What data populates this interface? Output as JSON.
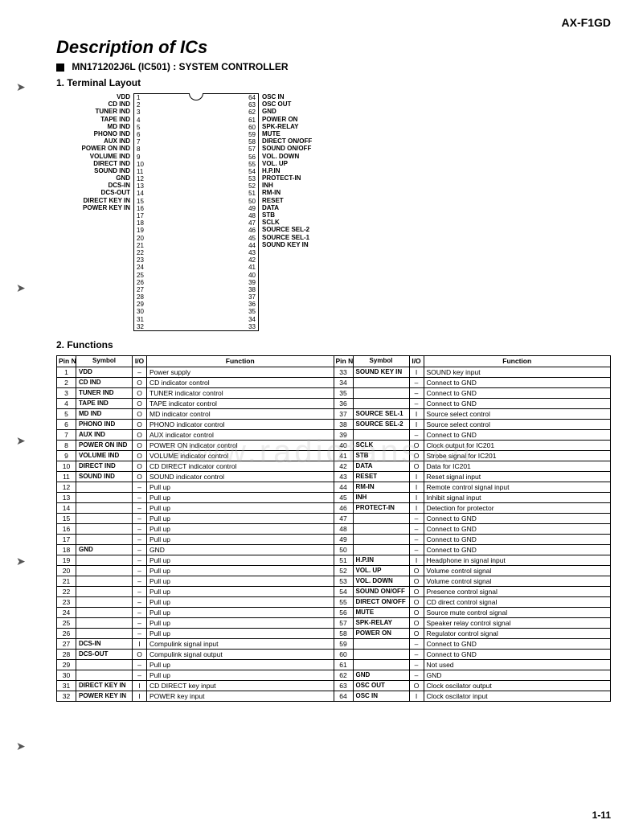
{
  "header": {
    "model": "AX-F1GD",
    "page_num": "1-11"
  },
  "titles": {
    "main": "Description of ICs",
    "ic_line": "MN171202J6L (IC501) : SYSTEM CONTROLLER",
    "layout": "1. Terminal Layout",
    "functions": "2. Functions"
  },
  "watermark": "www.radiofans.cn",
  "colors": {
    "bg": "#ffffff",
    "text": "#000000",
    "border": "#000000"
  },
  "chip": {
    "left": [
      {
        "n": 1,
        "l": "VDD"
      },
      {
        "n": 2,
        "l": "CD IND"
      },
      {
        "n": 3,
        "l": "TUNER IND"
      },
      {
        "n": 4,
        "l": "TAPE IND"
      },
      {
        "n": 5,
        "l": "MD IND"
      },
      {
        "n": 6,
        "l": "PHONO IND"
      },
      {
        "n": 7,
        "l": "AUX IND"
      },
      {
        "n": 8,
        "l": "POWER ON IND"
      },
      {
        "n": 9,
        "l": "VOLUME IND"
      },
      {
        "n": 10,
        "l": "DIRECT IND"
      },
      {
        "n": 11,
        "l": "SOUND IND"
      },
      {
        "n": 12,
        "l": ""
      },
      {
        "n": 13,
        "l": ""
      },
      {
        "n": 14,
        "l": ""
      },
      {
        "n": 15,
        "l": ""
      },
      {
        "n": 16,
        "l": ""
      },
      {
        "n": 17,
        "l": ""
      },
      {
        "n": 18,
        "l": "GND"
      },
      {
        "n": 19,
        "l": ""
      },
      {
        "n": 20,
        "l": ""
      },
      {
        "n": 21,
        "l": ""
      },
      {
        "n": 22,
        "l": ""
      },
      {
        "n": 23,
        "l": ""
      },
      {
        "n": 24,
        "l": ""
      },
      {
        "n": 25,
        "l": ""
      },
      {
        "n": 26,
        "l": ""
      },
      {
        "n": 27,
        "l": "DCS-IN"
      },
      {
        "n": 28,
        "l": "DCS-OUT"
      },
      {
        "n": 29,
        "l": ""
      },
      {
        "n": 30,
        "l": ""
      },
      {
        "n": 31,
        "l": "DIRECT KEY IN"
      },
      {
        "n": 32,
        "l": "POWER KEY IN"
      }
    ],
    "right": [
      {
        "n": 64,
        "l": "OSC IN"
      },
      {
        "n": 63,
        "l": "OSC OUT"
      },
      {
        "n": 62,
        "l": "GND"
      },
      {
        "n": 61,
        "l": ""
      },
      {
        "n": 60,
        "l": ""
      },
      {
        "n": 59,
        "l": ""
      },
      {
        "n": 58,
        "l": "POWER ON"
      },
      {
        "n": 57,
        "l": "SPK-RELAY"
      },
      {
        "n": 56,
        "l": "MUTE"
      },
      {
        "n": 55,
        "l": "DIRECT ON/OFF"
      },
      {
        "n": 54,
        "l": "SOUND ON/OFF"
      },
      {
        "n": 53,
        "l": "VOL. DOWN"
      },
      {
        "n": 52,
        "l": "VOL. UP"
      },
      {
        "n": 51,
        "l": "H.P.IN"
      },
      {
        "n": 50,
        "l": ""
      },
      {
        "n": 49,
        "l": ""
      },
      {
        "n": 48,
        "l": ""
      },
      {
        "n": 47,
        "l": ""
      },
      {
        "n": 46,
        "l": "PROTECT-IN"
      },
      {
        "n": 45,
        "l": "INH"
      },
      {
        "n": 44,
        "l": "RM-IN"
      },
      {
        "n": 43,
        "l": "RESET"
      },
      {
        "n": 42,
        "l": "DATA"
      },
      {
        "n": 41,
        "l": "STB"
      },
      {
        "n": 40,
        "l": "SCLK"
      },
      {
        "n": 39,
        "l": ""
      },
      {
        "n": 38,
        "l": "SOURCE SEL-2"
      },
      {
        "n": 37,
        "l": "SOURCE SEL-1"
      },
      {
        "n": 36,
        "l": ""
      },
      {
        "n": 35,
        "l": ""
      },
      {
        "n": 34,
        "l": ""
      },
      {
        "n": 33,
        "l": "SOUND KEY IN"
      }
    ]
  },
  "func_headers": {
    "pin": "Pin\nNo.",
    "symbol": "Symbol",
    "io": "I/O",
    "function": "Function",
    "pin2": "Pin\nNO."
  },
  "func_left": [
    {
      "p": 1,
      "s": "VDD",
      "io": "–",
      "f": "Power supply"
    },
    {
      "p": 2,
      "s": "CD IND",
      "io": "O",
      "f": "CD indicator control"
    },
    {
      "p": 3,
      "s": "TUNER IND",
      "io": "O",
      "f": "TUNER indicator control"
    },
    {
      "p": 4,
      "s": "TAPE IND",
      "io": "O",
      "f": "TAPE indicator control"
    },
    {
      "p": 5,
      "s": "MD IND",
      "io": "O",
      "f": "MD indicator control"
    },
    {
      "p": 6,
      "s": "PHONO IND",
      "io": "O",
      "f": "PHONO indicator control"
    },
    {
      "p": 7,
      "s": "AUX IND",
      "io": "O",
      "f": "AUX indicator control"
    },
    {
      "p": 8,
      "s": "POWER ON IND",
      "io": "O",
      "f": "POWER ON indicator control"
    },
    {
      "p": 9,
      "s": "VOLUME IND",
      "io": "O",
      "f": "VOLUME indicator control"
    },
    {
      "p": 10,
      "s": "DIRECT IND",
      "io": "O",
      "f": "CD DIRECT indicator control"
    },
    {
      "p": 11,
      "s": "SOUND IND",
      "io": "O",
      "f": "SOUND indicator control"
    },
    {
      "p": 12,
      "s": "",
      "io": "–",
      "f": "Pull up"
    },
    {
      "p": 13,
      "s": "",
      "io": "–",
      "f": "Pull up"
    },
    {
      "p": 14,
      "s": "",
      "io": "–",
      "f": "Pull up"
    },
    {
      "p": 15,
      "s": "",
      "io": "–",
      "f": "Pull up"
    },
    {
      "p": 16,
      "s": "",
      "io": "–",
      "f": "Pull up"
    },
    {
      "p": 17,
      "s": "",
      "io": "–",
      "f": "Pull up"
    },
    {
      "p": 18,
      "s": "GND",
      "io": "–",
      "f": "GND"
    },
    {
      "p": 19,
      "s": "",
      "io": "–",
      "f": "Pull up"
    },
    {
      "p": 20,
      "s": "",
      "io": "–",
      "f": "Pull up"
    },
    {
      "p": 21,
      "s": "",
      "io": "–",
      "f": "Pull up"
    },
    {
      "p": 22,
      "s": "",
      "io": "–",
      "f": "Pull up"
    },
    {
      "p": 23,
      "s": "",
      "io": "–",
      "f": "Pull up"
    },
    {
      "p": 24,
      "s": "",
      "io": "–",
      "f": "Pull up"
    },
    {
      "p": 25,
      "s": "",
      "io": "–",
      "f": "Pull up"
    },
    {
      "p": 26,
      "s": "",
      "io": "–",
      "f": "Pull up"
    },
    {
      "p": 27,
      "s": "DCS-IN",
      "io": "I",
      "f": "Compulink signal input"
    },
    {
      "p": 28,
      "s": "DCS-OUT",
      "io": "O",
      "f": "Compulink signal output"
    },
    {
      "p": 29,
      "s": "",
      "io": "–",
      "f": "Pull up"
    },
    {
      "p": 30,
      "s": "",
      "io": "–",
      "f": "Pull up"
    },
    {
      "p": 31,
      "s": "DIRECT KEY IN",
      "io": "I",
      "f": "CD DIRECT key input"
    },
    {
      "p": 32,
      "s": "POWER KEY IN",
      "io": "I",
      "f": "POWER key input"
    }
  ],
  "func_right": [
    {
      "p": 33,
      "s": "SOUND KEY IN",
      "io": "I",
      "f": "SOUND key input"
    },
    {
      "p": 34,
      "s": "",
      "io": "–",
      "f": "Connect to GND"
    },
    {
      "p": 35,
      "s": "",
      "io": "–",
      "f": "Connect to GND"
    },
    {
      "p": 36,
      "s": "",
      "io": "–",
      "f": "Connect to GND"
    },
    {
      "p": 37,
      "s": "SOURCE SEL-1",
      "io": "I",
      "f": "Source select control"
    },
    {
      "p": 38,
      "s": "SOURCE SEL-2",
      "io": "I",
      "f": "Source select control"
    },
    {
      "p": 39,
      "s": "",
      "io": "–",
      "f": "Connect to GND"
    },
    {
      "p": 40,
      "s": "SCLK",
      "io": "O",
      "f": "Clock output for IC201"
    },
    {
      "p": 41,
      "s": "STB",
      "io": "O",
      "f": "Strobe signal for IC201"
    },
    {
      "p": 42,
      "s": "DATA",
      "io": "O",
      "f": "Data for IC201"
    },
    {
      "p": 43,
      "s": "RESET",
      "io": "I",
      "f": "Reset signal input"
    },
    {
      "p": 44,
      "s": "RM-IN",
      "io": "I",
      "f": "Remote control signal input"
    },
    {
      "p": 45,
      "s": "INH",
      "io": "I",
      "f": "Inhibit signal input"
    },
    {
      "p": 46,
      "s": "PROTECT-IN",
      "io": "I",
      "f": "Detection for protector"
    },
    {
      "p": 47,
      "s": "",
      "io": "–",
      "f": "Connect to GND"
    },
    {
      "p": 48,
      "s": "",
      "io": "–",
      "f": "Connect to GND"
    },
    {
      "p": 49,
      "s": "",
      "io": "–",
      "f": "Connect to GND"
    },
    {
      "p": 50,
      "s": "",
      "io": "–",
      "f": "Connect to GND"
    },
    {
      "p": 51,
      "s": "H.P.IN",
      "io": "I",
      "f": "Headphone in signal input"
    },
    {
      "p": 52,
      "s": "VOL. UP",
      "io": "O",
      "f": "Volume control signal"
    },
    {
      "p": 53,
      "s": "VOL. DOWN",
      "io": "O",
      "f": "Volume control signal"
    },
    {
      "p": 54,
      "s": "SOUND ON/OFF",
      "io": "O",
      "f": "Presence control signal"
    },
    {
      "p": 55,
      "s": "DIRECT ON/OFF",
      "io": "O",
      "f": "CD direct control signal"
    },
    {
      "p": 56,
      "s": "MUTE",
      "io": "O",
      "f": "Source mute control signal"
    },
    {
      "p": 57,
      "s": "SPK-RELAY",
      "io": "O",
      "f": "Speaker relay control signal"
    },
    {
      "p": 58,
      "s": "POWER ON",
      "io": "O",
      "f": "Regulator control signal"
    },
    {
      "p": 59,
      "s": "",
      "io": "–",
      "f": "Connect to GND"
    },
    {
      "p": 60,
      "s": "",
      "io": "–",
      "f": "Connect to GND"
    },
    {
      "p": 61,
      "s": "",
      "io": "–",
      "f": "Not used"
    },
    {
      "p": 62,
      "s": "GND",
      "io": "–",
      "f": "GND"
    },
    {
      "p": 63,
      "s": "OSC OUT",
      "io": "O",
      "f": "Clock oscilator output"
    },
    {
      "p": 64,
      "s": "OSC IN",
      "io": "I",
      "f": "Clock oscilator input"
    }
  ]
}
